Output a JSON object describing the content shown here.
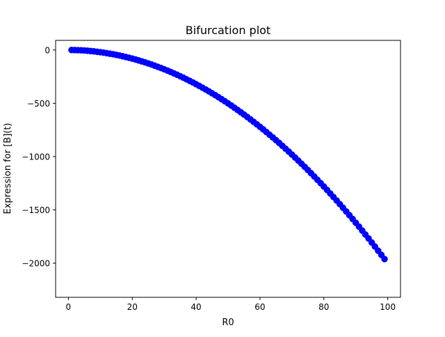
{
  "chart_data": {
    "type": "scatter",
    "title": "Bifurcation plot",
    "xlabel": "R0",
    "ylabel": "Expression for [B](t)",
    "xlim": [
      -4,
      104
    ],
    "ylim": [
      -2320,
      90
    ],
    "x_ticks": [
      0,
      20,
      40,
      60,
      80,
      100
    ],
    "x_tick_labels": [
      "0",
      "20",
      "40",
      "60",
      "80",
      "100"
    ],
    "y_ticks": [
      0,
      -500,
      -1000,
      -1500,
      -2000
    ],
    "y_tick_labels": [
      "0",
      "−500",
      "−1000",
      "−1500",
      "−2000"
    ],
    "grid": false,
    "legend": false,
    "series": [
      {
        "marker": "circle",
        "color": "#0000ff",
        "x": [
          1,
          2,
          3,
          4,
          5,
          6,
          7,
          8,
          9,
          10,
          11,
          12,
          13,
          14,
          15,
          16,
          17,
          18,
          19,
          20,
          21,
          22,
          23,
          24,
          25,
          26,
          27,
          28,
          29,
          30,
          31,
          32,
          33,
          34,
          35,
          36,
          37,
          38,
          39,
          40,
          41,
          42,
          43,
          44,
          45,
          46,
          47,
          48,
          49,
          50,
          51,
          52,
          53,
          54,
          55,
          56,
          57,
          58,
          59,
          60,
          61,
          62,
          63,
          64,
          65,
          66,
          67,
          68,
          69,
          70,
          71,
          72,
          73,
          74,
          75,
          76,
          77,
          78,
          79,
          80,
          81,
          82,
          83,
          84,
          85,
          86,
          87,
          88,
          89,
          90,
          91,
          92,
          93,
          94,
          95,
          96,
          97,
          98,
          99
        ],
        "y": [
          0,
          -1,
          -2,
          -3,
          -5,
          -7,
          -10,
          -13,
          -17,
          -21,
          -25,
          -30,
          -35,
          -40,
          -46,
          -52,
          -59,
          -66,
          -73,
          -81,
          -89,
          -98,
          -107,
          -116,
          -126,
          -136,
          -147,
          -158,
          -169,
          -181,
          -193,
          -206,
          -219,
          -232,
          -246,
          -260,
          -275,
          -290,
          -305,
          -321,
          -337,
          -354,
          -371,
          -388,
          -406,
          -424,
          -443,
          -462,
          -481,
          -501,
          -521,
          -542,
          -563,
          -584,
          -606,
          -628,
          -651,
          -674,
          -697,
          -721,
          -745,
          -770,
          -795,
          -820,
          -846,
          -872,
          -899,
          -926,
          -953,
          -981,
          -1009,
          -1038,
          -1067,
          -1096,
          -1126,
          -1156,
          -1187,
          -1218,
          -1249,
          -1281,
          -1313,
          -1346,
          -1379,
          -1412,
          -1446,
          -1480,
          -1515,
          -1550,
          -1585,
          -1621,
          -1657,
          -1694,
          -1731,
          -1768,
          -1806,
          -1844,
          -1883,
          -1922,
          -1961
        ]
      }
    ]
  }
}
